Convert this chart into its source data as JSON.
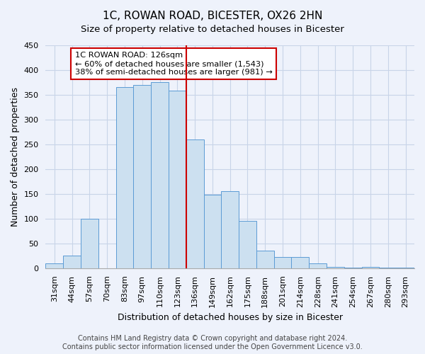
{
  "title": "1C, ROWAN ROAD, BICESTER, OX26 2HN",
  "subtitle": "Size of property relative to detached houses in Bicester",
  "xlabel": "Distribution of detached houses by size in Bicester",
  "ylabel": "Number of detached properties",
  "bar_labels": [
    "31sqm",
    "44sqm",
    "57sqm",
    "70sqm",
    "83sqm",
    "97sqm",
    "110sqm",
    "123sqm",
    "136sqm",
    "149sqm",
    "162sqm",
    "175sqm",
    "188sqm",
    "201sqm",
    "214sqm",
    "228sqm",
    "241sqm",
    "254sqm",
    "267sqm",
    "280sqm",
    "293sqm"
  ],
  "bar_values": [
    10,
    25,
    100,
    0,
    365,
    370,
    375,
    358,
    260,
    148,
    155,
    95,
    35,
    22,
    22,
    10,
    3,
    1,
    2,
    1,
    1
  ],
  "bar_color": "#cce0f0",
  "bar_edge_color": "#5b9bd5",
  "highlight_line_color": "#cc0000",
  "annotation_text": "1C ROWAN ROAD: 126sqm\n← 60% of detached houses are smaller (1,543)\n38% of semi-detached houses are larger (981) →",
  "annotation_box_color": "#ffffff",
  "annotation_box_edge_color": "#cc0000",
  "ylim": [
    0,
    450
  ],
  "yticks": [
    0,
    50,
    100,
    150,
    200,
    250,
    300,
    350,
    400,
    450
  ],
  "footer_text": "Contains HM Land Registry data © Crown copyright and database right 2024.\nContains public sector information licensed under the Open Government Licence v3.0.",
  "background_color": "#eef2fb",
  "grid_color": "#c8d4e8",
  "title_fontsize": 11,
  "subtitle_fontsize": 9.5,
  "xlabel_fontsize": 9,
  "ylabel_fontsize": 9,
  "tick_fontsize": 8,
  "footer_fontsize": 7
}
